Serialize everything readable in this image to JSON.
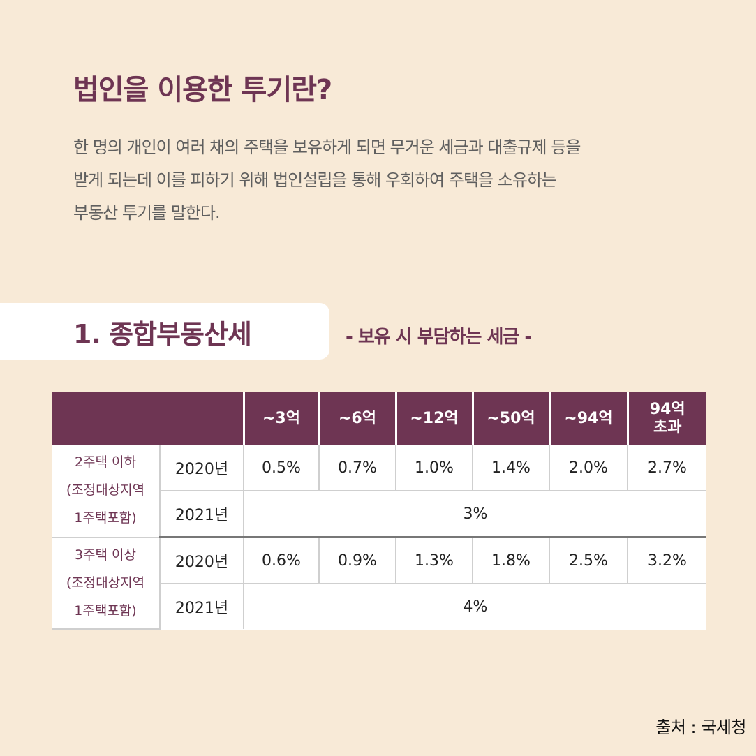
{
  "title": "법인을 이용한 투기란?",
  "description": [
    "한 명의 개인이 여러 채의 주택을 보유하게 되면 무거운 세금과 대출규제 등을",
    "받게 되는데 이를 피하기 위해 법인설립을 통해 우회하여 주택을 소유하는",
    "부동산 투기를 말한다."
  ],
  "section": {
    "title": "1. 종합부동산세",
    "subtitle": "- 보유 시 부담하는 세금 -"
  },
  "table": {
    "headers": [
      "~3억",
      "~6억",
      "~12억",
      "~50억",
      "~94억",
      "94억\n초과"
    ],
    "groups": [
      {
        "label": [
          "2주택 이하",
          "(조정대상지역",
          "1주택포함)"
        ],
        "rows": [
          {
            "year": "2020년",
            "values": [
              "0.5%",
              "0.7%",
              "1.0%",
              "1.4%",
              "2.0%",
              "2.7%"
            ]
          },
          {
            "year": "2021년",
            "merged": "3%"
          }
        ]
      },
      {
        "label": [
          "3주택 이상",
          "(조정대상지역",
          "1주택포함)"
        ],
        "rows": [
          {
            "year": "2020년",
            "values": [
              "0.6%",
              "0.9%",
              "1.3%",
              "1.8%",
              "2.5%",
              "3.2%"
            ]
          },
          {
            "year": "2021년",
            "merged": "4%"
          }
        ]
      }
    ]
  },
  "source": "출처 : 국세청"
}
